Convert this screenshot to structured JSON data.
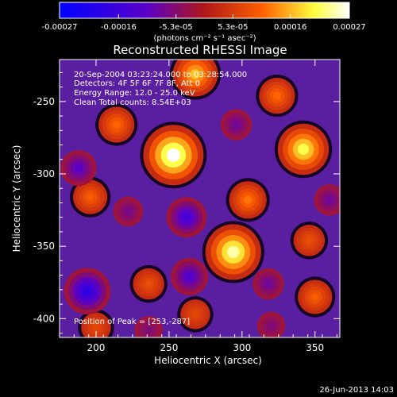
{
  "colorbar": {
    "tick_labels": [
      "-0.00027",
      "-0.00016",
      "-5.3e-05",
      "5.3e-05",
      "0.00016",
      "0.00027"
    ],
    "tick_values": [
      -0.00027,
      -0.00016,
      -5.3e-05,
      5.3e-05,
      0.00016,
      0.00027
    ],
    "range": [
      -0.00027,
      0.00027
    ],
    "unit_label": "(photons cm⁻² s⁻¹ asec⁻²)"
  },
  "footer": {
    "timestamp": "26-Jun-2013 14:03"
  },
  "chart_data": {
    "type": "heatmap",
    "title": "Reconstructed RHESSI Image",
    "xlabel": "Heliocentric X (arcsec)",
    "ylabel": "Heliocentric Y (arcsec)",
    "xlim": [
      175,
      367
    ],
    "ylim": [
      -413,
      -221
    ],
    "xticks": [
      200,
      250,
      300,
      350
    ],
    "yticks": [
      -250,
      -300,
      -350,
      -400
    ],
    "annotations": [
      "20-Sep-2004 03:23:24.000 to 03:28:54.000",
      "Detectors: 4F 5F 6F 7F 8F, Att 0",
      "Energy Range: 12.0 - 25.0 keV",
      "Clean     Total counts: 8.54E+03",
      "Position of Peak = [253,-287]"
    ],
    "peak": {
      "x": 253,
      "y": -287
    },
    "colormap": [
      "#0000ff",
      "#5a00c8",
      "#b01818",
      "#ff6000",
      "#ffff40",
      "#ffffff"
    ],
    "sources": [
      {
        "x": 253,
        "y": -287,
        "value": 0.00027
      },
      {
        "x": 268,
        "y": -231,
        "value": 0.00017
      },
      {
        "x": 294,
        "y": -354,
        "value": 0.00024
      },
      {
        "x": 342,
        "y": -283,
        "value": 0.00021
      },
      {
        "x": 304,
        "y": -318,
        "value": 0.00012
      },
      {
        "x": 214,
        "y": -266,
        "value": 0.00011
      },
      {
        "x": 196,
        "y": -316,
        "value": 0.0001
      },
      {
        "x": 350,
        "y": -385,
        "value": 0.0001
      },
      {
        "x": 324,
        "y": -246,
        "value": 0.00011
      },
      {
        "x": 346,
        "y": -346,
        "value": 8e-05
      },
      {
        "x": 236,
        "y": -376,
        "value": 8e-05
      },
      {
        "x": 268,
        "y": -397,
        "value": 7e-05
      },
      {
        "x": 200,
        "y": -406,
        "value": 7e-05
      },
      {
        "x": 188,
        "y": -296,
        "value": -0.00011
      },
      {
        "x": 222,
        "y": -326,
        "value": -7e-05
      },
      {
        "x": 262,
        "y": -330,
        "value": -0.00014
      },
      {
        "x": 194,
        "y": -381,
        "value": -0.00018
      },
      {
        "x": 264,
        "y": -371,
        "value": -0.00012
      },
      {
        "x": 318,
        "y": -376,
        "value": -8e-05
      },
      {
        "x": 360,
        "y": -318,
        "value": -8e-05
      },
      {
        "x": 296,
        "y": -266,
        "value": -8e-05
      },
      {
        "x": 320,
        "y": -405,
        "value": -6e-05
      },
      {
        "x": 236,
        "y": -408,
        "value": -6e-05
      }
    ]
  }
}
